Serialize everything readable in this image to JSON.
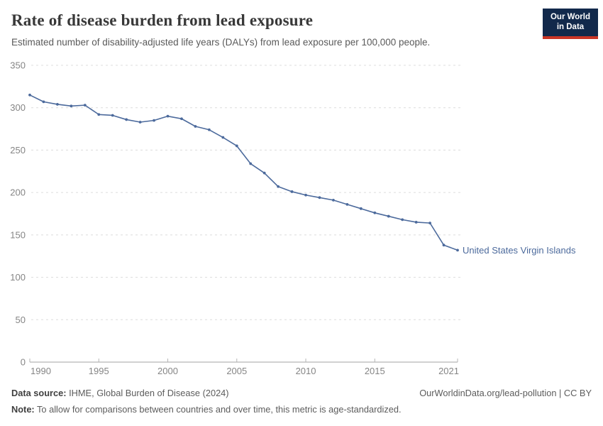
{
  "header": {
    "title": "Rate of disease burden from lead exposure",
    "subtitle": "Estimated number of disability-adjusted life years (DALYs) from lead exposure per 100,000 people.",
    "logo": {
      "line1": "Our World",
      "line2": "in Data",
      "bg_color": "#12294b",
      "accent_color": "#ca3526"
    }
  },
  "chart_data": {
    "type": "line",
    "title": "Rate of disease burden from lead exposure",
    "series_label": "United States Virgin Islands",
    "x": [
      1990,
      1991,
      1992,
      1993,
      1994,
      1995,
      1996,
      1997,
      1998,
      1999,
      2000,
      2001,
      2002,
      2003,
      2004,
      2005,
      2006,
      2007,
      2008,
      2009,
      2010,
      2011,
      2012,
      2013,
      2014,
      2015,
      2016,
      2017,
      2018,
      2019,
      2020,
      2021
    ],
    "values": [
      315,
      307,
      304,
      302,
      303,
      292,
      291,
      286,
      283,
      285,
      290,
      287,
      278,
      274,
      265,
      255,
      234,
      223,
      207,
      201,
      197,
      194,
      191,
      186,
      181,
      176,
      172,
      168,
      165,
      164,
      138,
      132
    ],
    "xlabel": "",
    "ylabel": "",
    "ylim": [
      0,
      350
    ],
    "yticks": [
      0,
      50,
      100,
      150,
      200,
      250,
      300,
      350
    ],
    "xticks": [
      1990,
      1995,
      2000,
      2005,
      2010,
      2015,
      2021
    ],
    "grid": "dashed-horizontal",
    "legend_position": "end-of-line-label",
    "line_color": "#4c6a9c",
    "grid_color": "#dcdcdc",
    "axis_color": "#a3a3a3",
    "tick_label_color": "#858585"
  },
  "footer": {
    "source_label": "Data source:",
    "source_text": " IHME, Global Burden of Disease (2024)",
    "right_text": "OurWorldinData.org/lead-pollution | CC BY",
    "note_label": "Note:",
    "note_text": " To allow for comparisons between countries and over time, this metric is age-standardized."
  }
}
